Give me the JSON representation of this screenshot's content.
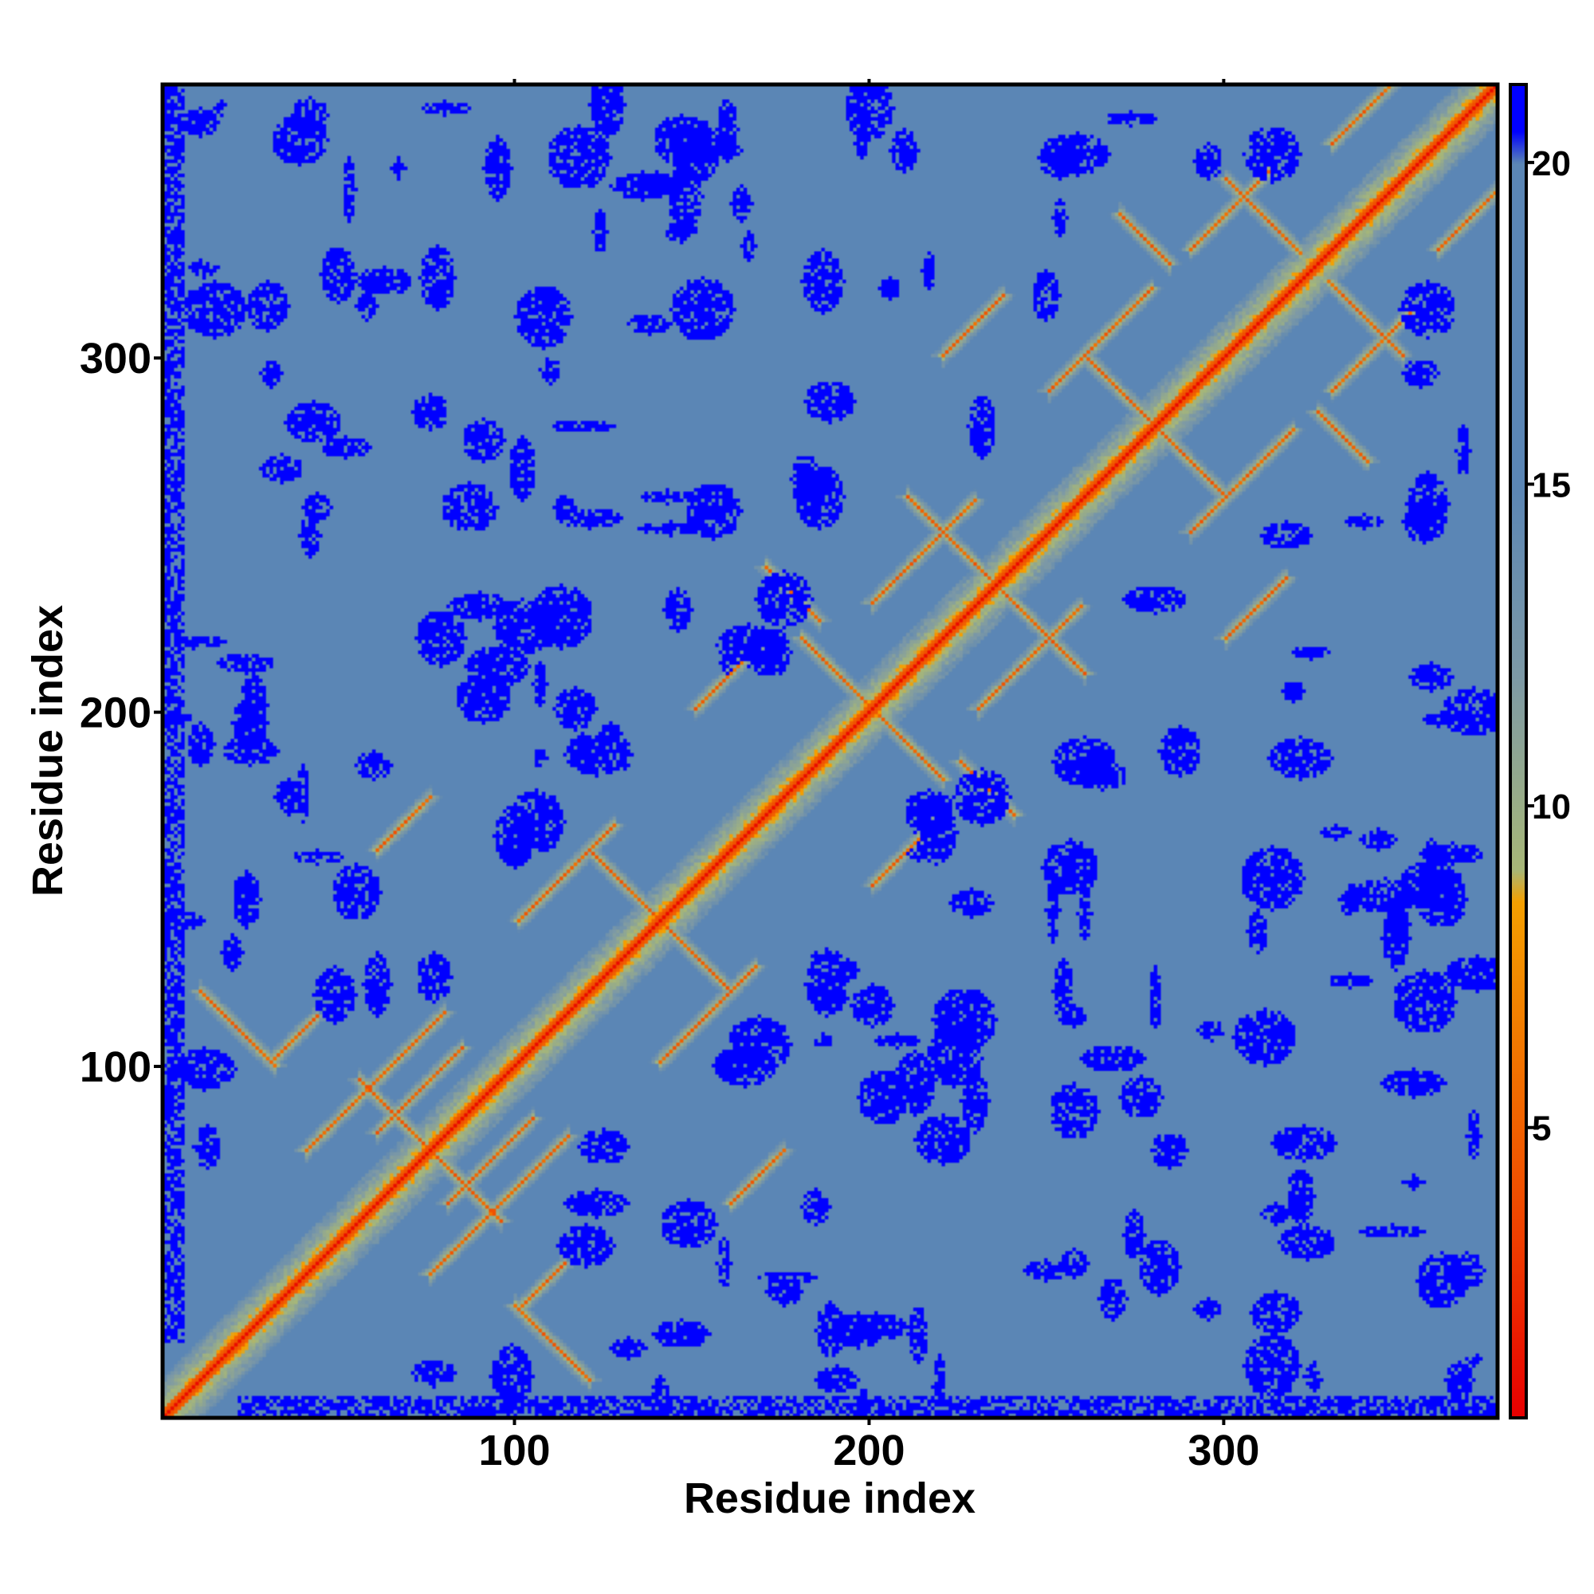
{
  "chart_data": {
    "type": "heatmap",
    "title": "",
    "xlabel": "Residue index",
    "ylabel": "Residue index",
    "xlim": [
      1,
      377
    ],
    "ylim": [
      1,
      377
    ],
    "x_ticks": [
      100,
      200,
      300
    ],
    "x_tick_labels": [
      "100",
      "200",
      "300"
    ],
    "y_ticks": [
      100,
      200,
      300
    ],
    "y_tick_labels": [
      "100",
      "200",
      "300"
    ],
    "residue_count": 377,
    "symmetric": true,
    "grid": false,
    "legend": "colorbar-right",
    "colorbar": {
      "range": [
        0.5,
        21.2
      ],
      "ticks": [
        5,
        10,
        15,
        20
      ],
      "tick_labels": [
        "5",
        "10",
        "15",
        "20"
      ],
      "color_stops": [
        {
          "value": 0.5,
          "color": "#e80000"
        },
        {
          "value": 4.0,
          "color": "#f05000"
        },
        {
          "value": 8.5,
          "color": "#f5a000"
        },
        {
          "value": 9.0,
          "color": "#a8b878"
        },
        {
          "value": 12.0,
          "color": "#7e9aa6"
        },
        {
          "value": 15.0,
          "color": "#5b86b5"
        },
        {
          "value": 20.0,
          "color": "#5b86b5"
        },
        {
          "value": 20.5,
          "color": "#0000ff"
        },
        {
          "value": 21.2,
          "color": "#0000ff"
        }
      ]
    },
    "background_value": 17.5,
    "background_color": "#5b86b5",
    "far_contact_color": "#0000ff",
    "diagonal_color": "#e80000"
  }
}
